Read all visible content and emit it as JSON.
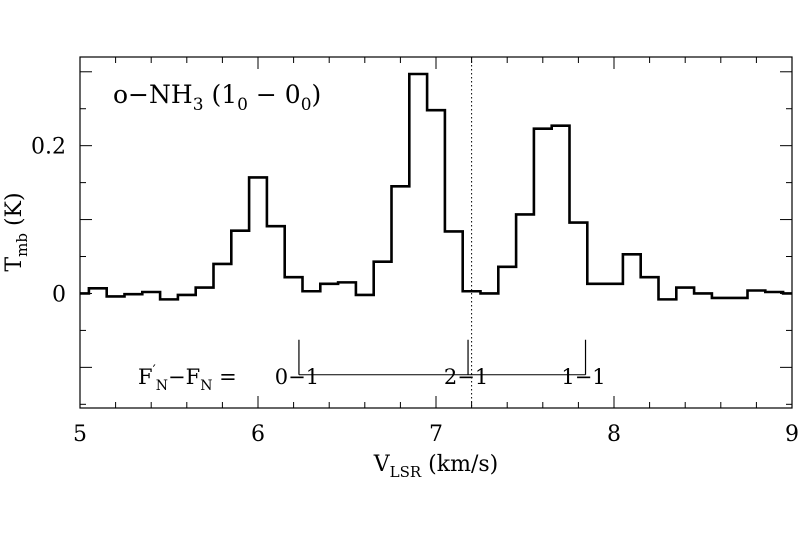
{
  "chart_data": {
    "type": "line",
    "style": "step",
    "title": "o−NH₃ (1₀ − 0₀)",
    "title_parts": {
      "prefix": "o−NH",
      "sub1": "3",
      "open": " (1",
      "sub2": "0",
      "mid": " − 0",
      "sub3": "0",
      "close": ")"
    },
    "xlabel": "V_LSR (km/s)",
    "xlabel_parts": {
      "main": "V",
      "sub": "LSR",
      "rest": " (km/s)"
    },
    "ylabel": "T_mb (K)",
    "ylabel_parts": {
      "main": "T",
      "sub": "mb",
      "rest": " (K)"
    },
    "xlim": [
      5,
      9
    ],
    "ylim": [
      -0.155,
      0.32
    ],
    "x_ticks": [
      5,
      6,
      7,
      8,
      9
    ],
    "x_tick_labels": [
      "5",
      "6",
      "7",
      "8",
      "9"
    ],
    "y_ticks": [
      0,
      0.2
    ],
    "y_tick_labels": [
      "0",
      "0.2"
    ],
    "systemic_velocity": 7.2,
    "spectrum": {
      "x": [
        5.0,
        5.1,
        5.2,
        5.3,
        5.4,
        5.5,
        5.6,
        5.7,
        5.8,
        5.9,
        6.0,
        6.1,
        6.2,
        6.3,
        6.4,
        6.5,
        6.6,
        6.7,
        6.8,
        6.9,
        7.0,
        7.1,
        7.2,
        7.3,
        7.4,
        7.5,
        7.6,
        7.7,
        7.8,
        7.9,
        8.0,
        8.1,
        8.2,
        8.3,
        8.4,
        8.5,
        8.6,
        8.7,
        8.8,
        8.9,
        9.0
      ],
      "values": [
        0.0,
        0.007,
        -0.004,
        -0.001,
        0.002,
        -0.008,
        -0.002,
        0.008,
        0.04,
        0.085,
        0.157,
        0.091,
        0.022,
        0.003,
        0.013,
        0.015,
        -0.002,
        0.043,
        0.145,
        0.297,
        0.248,
        0.084,
        0.003,
        0.0,
        0.036,
        0.107,
        0.223,
        0.227,
        0.096,
        0.013,
        0.013,
        0.053,
        0.022,
        -0.008,
        0.008,
        0.0,
        -0.006,
        -0.006,
        0.004,
        0.002,
        0.0
      ]
    },
    "hyperfine_label": "F′N−FN = ",
    "hyperfine_label_parts": {
      "f1": "F",
      "prime": "′",
      "sub1": "N",
      "mid": "−F",
      "sub2": "N",
      "eq": "  = "
    },
    "hyperfine_components": [
      {
        "label": "0−1",
        "velocity": 6.23,
        "strength": 1.0
      },
      {
        "label": "2−1",
        "velocity": 7.18,
        "strength": 1.0
      },
      {
        "label": "1−1",
        "velocity": 7.84,
        "strength": 1.0
      }
    ],
    "hyperfine_bar_level": -0.11,
    "grid": false,
    "line_color": "#000000"
  }
}
